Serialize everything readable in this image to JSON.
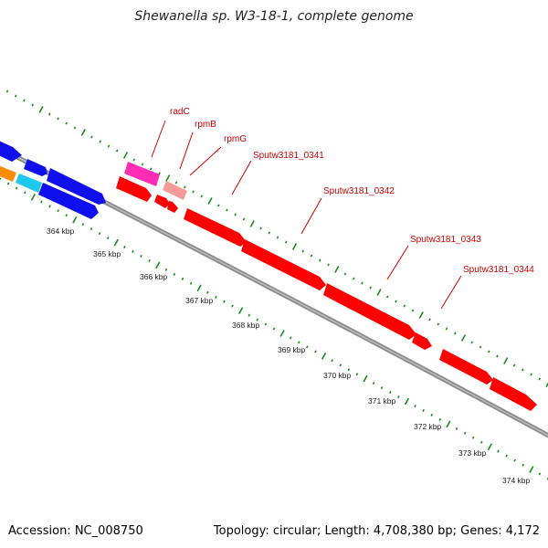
{
  "title": "Shewanella sp. W3-18-1, complete genome",
  "footer": {
    "accession": "Accession: NC_008750",
    "info": "Topology: circular; Length: 4,708,380 bp; Genes: 4,172"
  },
  "colors": {
    "background": "#ffffff",
    "backbone": "#8a8a8a",
    "tick": "#1a8a1a",
    "label": "#cc0000",
    "gene_red": "#ff0000",
    "gene_blue": "#1010ee",
    "gene_magenta": "#ff2db5",
    "gene_pink": "#f59a9a",
    "gene_orange": "#ff8c00",
    "gene_cyan": "#1ec8ee"
  },
  "ruler": {
    "unit": "kbp",
    "labels": [
      "364 kbp",
      "365 kbp",
      "366 kbp",
      "367 kbp",
      "368 kbp",
      "369 kbp",
      "370 kbp",
      "371 kbp",
      "372 kbp",
      "373 kbp",
      "374 kbp"
    ]
  },
  "gene_labels": [
    "radC",
    "rpmB",
    "rpmG",
    "Sputw3181_0341",
    "Sputw3181_0342",
    "Sputw3181_0343",
    "Sputw3181_0344"
  ]
}
